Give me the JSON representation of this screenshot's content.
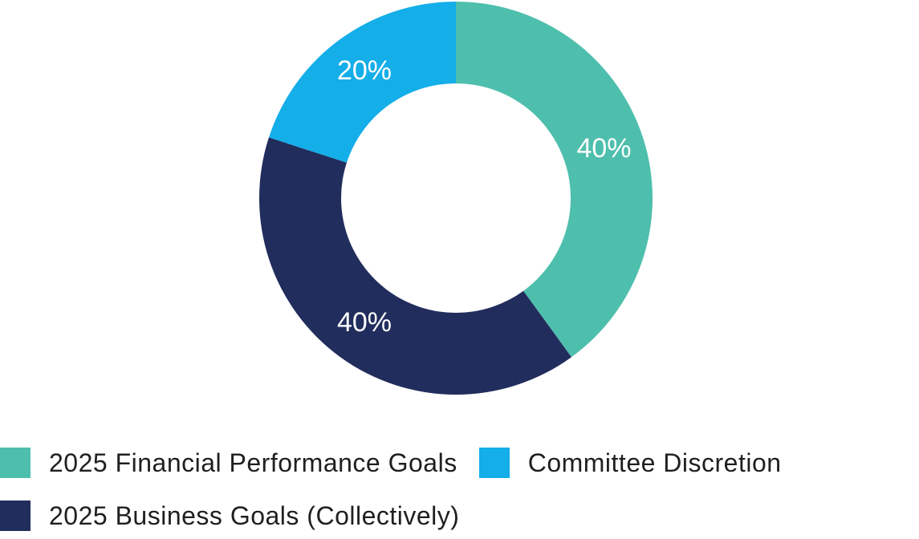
{
  "chart_data": {
    "type": "pie",
    "subtype": "donut",
    "title": "",
    "direction": "clockwise",
    "start_angle_deg": 0,
    "legend_position": "bottom",
    "label_color": "#ffffff",
    "slices": [
      {
        "label": "2025 Financial Performance Goals",
        "value": 40,
        "data_label": "40%",
        "color": "#4ebfad"
      },
      {
        "label": "2025 Business Goals (Collectively)",
        "value": 40,
        "data_label": "40%",
        "color": "#212d5c"
      },
      {
        "label": "Committee Discretion",
        "value": 20,
        "data_label": "20%",
        "color": "#14aee9"
      }
    ]
  },
  "legend": {
    "rows": [
      [
        {
          "label": "2025 Financial Performance Goals",
          "color": "#4ebfad"
        },
        {
          "label": "Committee Discretion",
          "color": "#14aee9"
        }
      ],
      [
        {
          "label": "2025 Business Goals (Collectively)",
          "color": "#212d5c"
        }
      ]
    ]
  }
}
